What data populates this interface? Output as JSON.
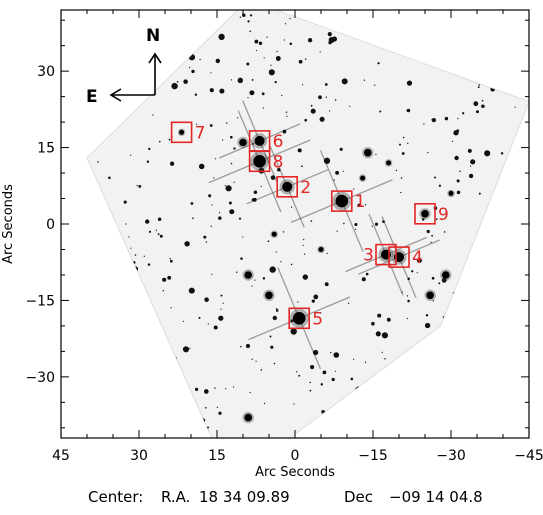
{
  "axes": {
    "xlabel": "Arc Seconds",
    "ylabel": "Arc Seconds",
    "xlim": [
      45,
      -45
    ],
    "ylim": [
      -42,
      42
    ],
    "x_ticks": [
      {
        "value": 45,
        "label": "45"
      },
      {
        "value": 30,
        "label": "30"
      },
      {
        "value": 15,
        "label": "15"
      },
      {
        "value": 0,
        "label": "0"
      },
      {
        "value": -15,
        "label": "−15"
      },
      {
        "value": -30,
        "label": "−30"
      },
      {
        "value": -45,
        "label": "−45"
      }
    ],
    "y_ticks": [
      {
        "value": 30,
        "label": "30"
      },
      {
        "value": 15,
        "label": "15"
      },
      {
        "value": 0,
        "label": "0"
      },
      {
        "value": -15,
        "label": "−15"
      },
      {
        "value": -30,
        "label": "−30"
      }
    ]
  },
  "compass": {
    "north": "N",
    "east": "E"
  },
  "field_outline": [
    [
      40,
      13
    ],
    [
      9,
      44
    ],
    [
      -45,
      24
    ],
    [
      -28,
      -20
    ],
    [
      1,
      -42
    ],
    [
      16,
      -42
    ],
    [
      40,
      13
    ]
  ],
  "markers": [
    {
      "label": "1",
      "x": -9,
      "y": 4.5
    },
    {
      "label": "2",
      "x": 1.5,
      "y": 7.3
    },
    {
      "label": "3",
      "x": -17.5,
      "y": -6
    },
    {
      "label": "4",
      "x": -20,
      "y": -6.5
    },
    {
      "label": "5",
      "x": -0.8,
      "y": -18.5
    },
    {
      "label": "6",
      "x": 6.8,
      "y": 16.3
    },
    {
      "label": "7",
      "x": 21.8,
      "y": 18
    },
    {
      "label": "8",
      "x": 6.8,
      "y": 12.3
    },
    {
      "label": "9",
      "x": -25,
      "y": 2
    }
  ],
  "bright_stars": [
    {
      "x": -9,
      "y": 4.5,
      "mag": 5
    },
    {
      "x": 6.8,
      "y": 12.3,
      "mag": 5
    },
    {
      "x": 6.8,
      "y": 16.3,
      "mag": 4
    },
    {
      "x": 1.5,
      "y": 7.3,
      "mag": 4
    },
    {
      "x": -0.8,
      "y": -18.5,
      "mag": 5
    },
    {
      "x": -17.5,
      "y": -6,
      "mag": 4
    },
    {
      "x": -20,
      "y": -6.5,
      "mag": 4
    },
    {
      "x": -25,
      "y": 2,
      "mag": 3
    },
    {
      "x": 21.8,
      "y": 18,
      "mag": 2
    },
    {
      "x": 10,
      "y": 16,
      "mag": 3
    },
    {
      "x": 9,
      "y": -10,
      "mag": 3
    },
    {
      "x": -14,
      "y": 14,
      "mag": 3
    },
    {
      "x": -26,
      "y": -14,
      "mag": 3
    },
    {
      "x": 5,
      "y": -14,
      "mag": 3
    },
    {
      "x": -5,
      "y": -5,
      "mag": 2
    },
    {
      "x": 4,
      "y": -2,
      "mag": 2
    },
    {
      "x": -29,
      "y": -10,
      "mag": 3
    },
    {
      "x": -18,
      "y": 12,
      "mag": 2
    },
    {
      "x": 9,
      "y": -38,
      "mag": 3
    },
    {
      "x": -13,
      "y": 9,
      "mag": 2
    },
    {
      "x": -35,
      "y": -12,
      "mag": 2
    },
    {
      "x": -30,
      "y": 6,
      "mag": 2
    }
  ],
  "marker_color": "#e32626",
  "caption": {
    "center_label": "Center:",
    "ra_label": "R.A.",
    "ra_value": "18 34 09.89",
    "dec_label": "Dec",
    "dec_value": "−09 14 04.8"
  }
}
